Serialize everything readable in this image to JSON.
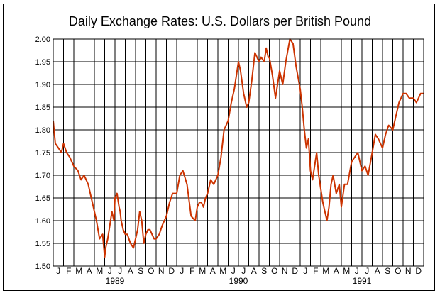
{
  "chart_data": {
    "type": "line",
    "title": "Daily Exchange Rates: U.S. Dollars per British Pound",
    "xlabel": "",
    "ylabel": "",
    "ylim": [
      1.5,
      2.0
    ],
    "yticks": [
      "1.50",
      "1.55",
      "1.60",
      "1.65",
      "1.70",
      "1.75",
      "1.80",
      "1.85",
      "1.90",
      "1.95",
      "2.00"
    ],
    "month_labels": [
      "J",
      "F",
      "M",
      "A",
      "M",
      "J",
      "J",
      "A",
      "S",
      "O",
      "N",
      "D",
      "J",
      "F",
      "M",
      "A",
      "M",
      "J",
      "J",
      "A",
      "S",
      "O",
      "N",
      "D",
      "J",
      "F",
      "M",
      "A",
      "M",
      "J",
      "J",
      "A",
      "S",
      "O",
      "N",
      "D"
    ],
    "year_labels": [
      "1989",
      "1990",
      "1991"
    ],
    "grid": true,
    "line_color": "#cc3300",
    "series": [
      {
        "x": [
          0,
          0.2,
          0.5,
          0.8,
          1.0,
          1.3,
          1.6,
          2.0,
          2.4,
          2.7,
          3.0,
          3.4,
          3.8,
          4.2,
          4.5,
          4.8,
          5.0,
          5.1,
          5.3,
          5.5,
          5.7,
          5.9,
          6.0,
          6.2,
          6.4,
          6.5,
          6.6,
          6.8,
          7.0,
          7.2,
          7.5,
          7.8,
          8.0,
          8.2,
          8.4,
          8.6,
          8.8,
          9.0,
          9.2,
          9.4,
          9.6,
          9.8,
          10.0,
          10.3,
          10.6,
          11.0,
          11.3,
          11.6,
          12.0,
          12.3,
          12.6,
          13.0,
          13.4,
          13.8,
          14.0,
          14.2,
          14.4,
          14.6,
          14.8,
          15.0,
          15.3,
          15.6,
          16.0,
          16.3,
          16.6,
          17.0,
          17.3,
          17.6,
          18.0,
          18.2,
          18.5,
          18.8,
          19.0,
          19.3,
          19.6,
          20.0,
          20.2,
          20.5,
          20.7,
          20.9,
          21.0,
          21.3,
          21.6,
          22.0,
          22.3,
          22.6,
          23.0,
          23.3,
          23.6,
          24.0,
          24.2,
          24.4,
          24.6,
          24.8,
          25.0,
          25.2,
          25.4,
          25.6,
          25.8,
          26.0,
          26.2,
          26.4,
          26.6,
          26.8,
          27.0,
          27.2,
          27.5,
          27.8,
          28.0,
          28.3,
          28.6,
          29.0,
          29.3,
          29.6,
          30.0,
          30.3,
          30.6,
          31.0,
          31.3,
          31.6,
          32.0,
          32.3,
          32.6,
          33.0,
          33.3,
          33.6,
          34.0,
          34.3,
          34.6,
          35.0,
          35.3,
          35.5,
          35.7,
          36.0
        ],
        "values": [
          1.82,
          1.77,
          1.76,
          1.75,
          1.77,
          1.75,
          1.74,
          1.72,
          1.71,
          1.69,
          1.7,
          1.68,
          1.64,
          1.6,
          1.56,
          1.57,
          1.52,
          1.54,
          1.56,
          1.59,
          1.62,
          1.6,
          1.65,
          1.66,
          1.63,
          1.62,
          1.6,
          1.58,
          1.57,
          1.57,
          1.55,
          1.54,
          1.56,
          1.58,
          1.62,
          1.6,
          1.55,
          1.57,
          1.58,
          1.58,
          1.57,
          1.56,
          1.56,
          1.57,
          1.59,
          1.61,
          1.64,
          1.66,
          1.66,
          1.7,
          1.71,
          1.68,
          1.61,
          1.6,
          1.63,
          1.64,
          1.64,
          1.63,
          1.65,
          1.66,
          1.69,
          1.68,
          1.7,
          1.74,
          1.8,
          1.82,
          1.86,
          1.89,
          1.95,
          1.93,
          1.88,
          1.85,
          1.86,
          1.91,
          1.97,
          1.95,
          1.96,
          1.95,
          1.98,
          1.96,
          1.96,
          1.92,
          1.87,
          1.93,
          1.9,
          1.95,
          2.0,
          1.99,
          1.94,
          1.89,
          1.85,
          1.8,
          1.76,
          1.78,
          1.71,
          1.69,
          1.72,
          1.75,
          1.7,
          1.67,
          1.64,
          1.62,
          1.6,
          1.63,
          1.68,
          1.7,
          1.66,
          1.68,
          1.63,
          1.68,
          1.68,
          1.73,
          1.74,
          1.75,
          1.71,
          1.72,
          1.7,
          1.75,
          1.79,
          1.78,
          1.76,
          1.79,
          1.81,
          1.8,
          1.83,
          1.86,
          1.88,
          1.88,
          1.87,
          1.87,
          1.86,
          1.87,
          1.88,
          1.88
        ]
      }
    ]
  }
}
